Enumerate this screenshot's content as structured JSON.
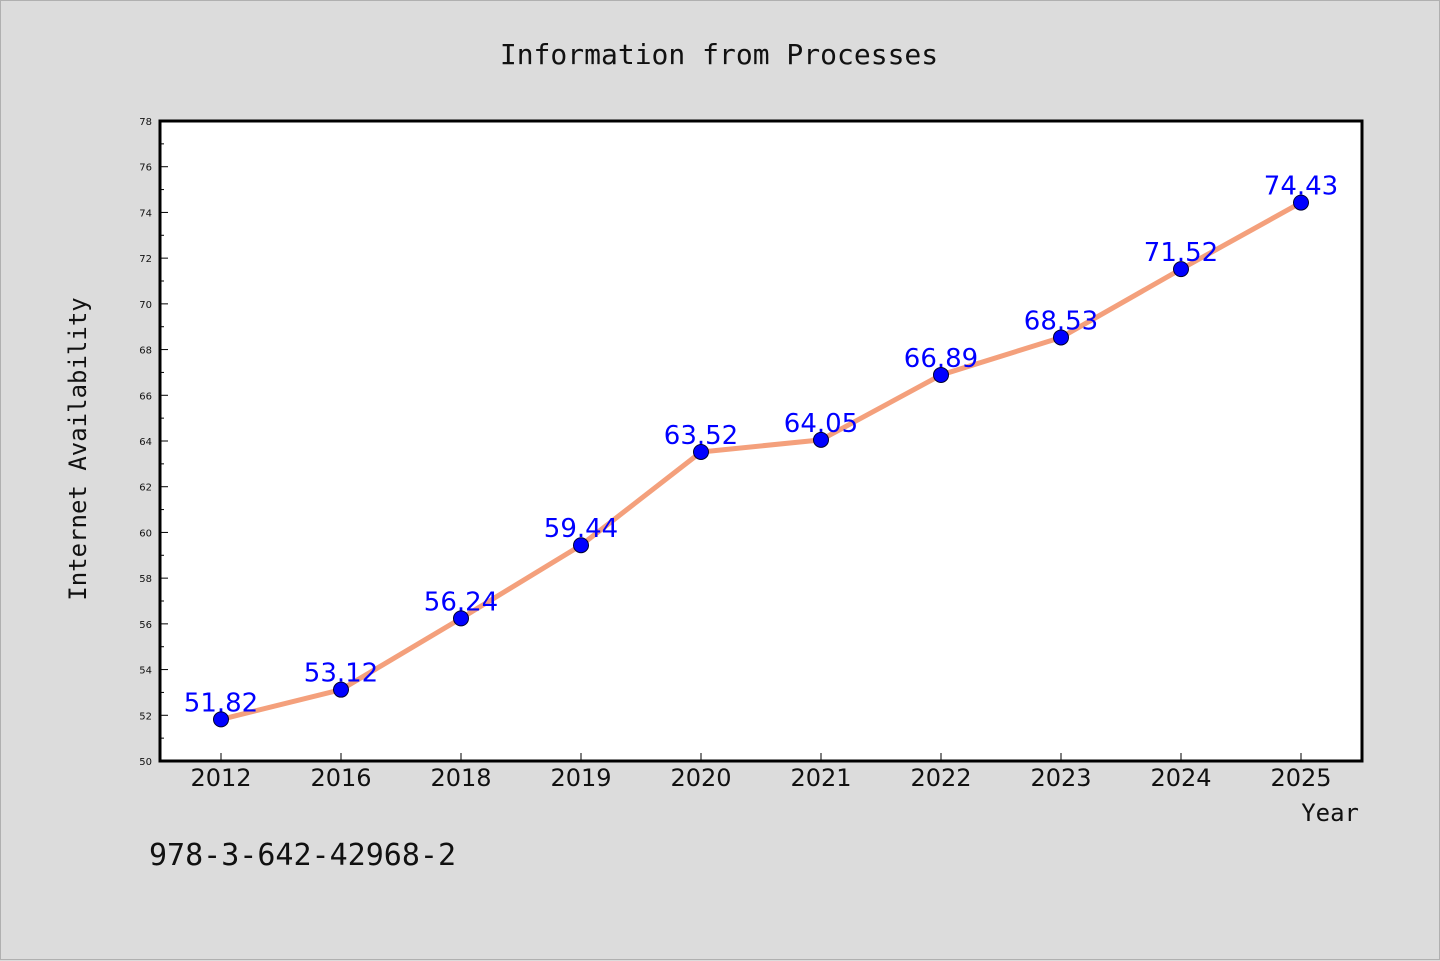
{
  "chart_data": {
    "type": "line",
    "title": "Information from Processes",
    "xlabel": "Year",
    "ylabel": "Internet Availability",
    "categories": [
      "2012",
      "2016",
      "2018",
      "2019",
      "2020",
      "2021",
      "2022",
      "2023",
      "2024",
      "2025"
    ],
    "values": [
      51.82,
      53.12,
      56.24,
      59.44,
      63.52,
      64.05,
      66.89,
      68.53,
      71.52,
      74.43
    ],
    "data_labels": [
      "51.82",
      "53.12",
      "56.24",
      "59.44",
      "63.52",
      "64.05",
      "66.89",
      "68.53",
      "71.52",
      "74.43"
    ],
    "ylim": [
      50,
      78
    ],
    "yticks": [
      50,
      52,
      54,
      56,
      58,
      60,
      62,
      64,
      66,
      68,
      70,
      72,
      74,
      76,
      78
    ],
    "grid": false,
    "line_color": "#f4a07c",
    "marker_color": "#0000ff"
  },
  "footer": {
    "isbn": "978-3-642-42968-2"
  }
}
